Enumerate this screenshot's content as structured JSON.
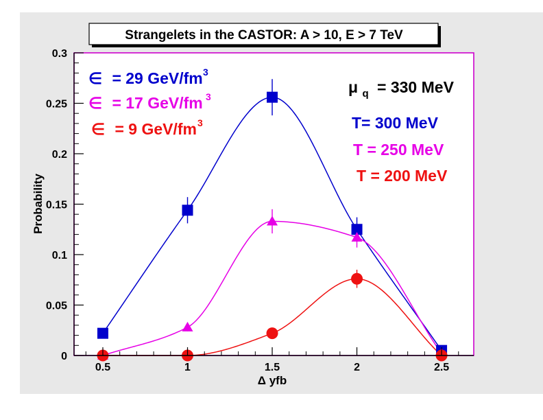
{
  "chart_data": {
    "type": "scatter",
    "title": "Strangelets in the CASTOR: A > 10, E > 7 TeV",
    "xlabel": "Δ yfb",
    "ylabel": "Probability",
    "xlim": [
      0.33,
      2.69
    ],
    "ylim": [
      0,
      0.3
    ],
    "xticks": [
      "0.5",
      "1",
      "1.5",
      "2",
      "2.5"
    ],
    "yticks": [
      "0",
      "0.05",
      "0.1",
      "0.15",
      "0.2",
      "0.25",
      "0.3"
    ],
    "grid": false,
    "series": [
      {
        "epsilon_value": "= 29 GeV/fm",
        "epsilon_exp": "3",
        "temperature": "T= 300 MeV",
        "color": "#0000cc",
        "marker": "square",
        "x": [
          0.5,
          1.0,
          1.5,
          2.0,
          2.5
        ],
        "y": [
          0.022,
          0.144,
          0.256,
          0.125,
          0.005
        ],
        "err": [
          0,
          0.013,
          0.018,
          0.012,
          0
        ]
      },
      {
        "epsilon_value": "= 17 GeV/fm",
        "epsilon_exp": "3",
        "temperature": "T = 250 MeV",
        "color": "#e600e6",
        "marker": "triangle",
        "x": [
          0.5,
          1.0,
          1.5,
          2.0,
          2.5
        ],
        "y": [
          0.0,
          0.028,
          0.133,
          0.117,
          0.002
        ],
        "err": [
          0,
          0.004,
          0.012,
          0.01,
          0
        ]
      },
      {
        "epsilon_value": "= 9 GeV/fm",
        "epsilon_exp": "3",
        "temperature": "T = 200 MeV",
        "color": "#ee1111",
        "marker": "circle",
        "x": [
          0.5,
          1.0,
          1.5,
          2.0,
          2.5
        ],
        "y": [
          0.0,
          0.0,
          0.022,
          0.076,
          0.0
        ],
        "err": [
          0,
          0,
          0,
          0.009,
          0
        ]
      }
    ],
    "annotations": {
      "epsilon_symbol": "∈",
      "mu_symbol": "μ",
      "mu_sub": "q",
      "mu_value": "= 330 MeV"
    }
  },
  "colors": {
    "frame_fill": "#e8e8e8",
    "plot_border": "#cc00cc",
    "axis": "#000000"
  }
}
